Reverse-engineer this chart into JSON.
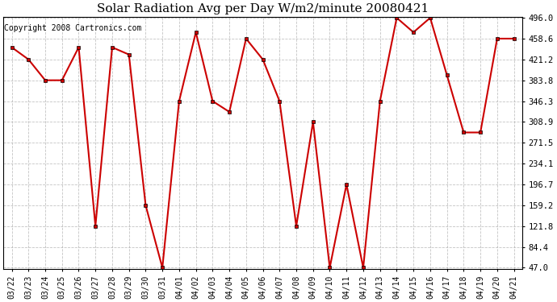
{
  "title": "Solar Radiation Avg per Day W/m2/minute 20080421",
  "copyright": "Copyright 2008 Cartronics.com",
  "x_labels": [
    "03/22",
    "03/23",
    "03/24",
    "03/25",
    "03/26",
    "03/27",
    "03/28",
    "03/29",
    "03/30",
    "03/31",
    "04/01",
    "04/02",
    "04/03",
    "04/04",
    "04/05",
    "04/06",
    "04/07",
    "04/08",
    "04/09",
    "04/10",
    "04/11",
    "04/12",
    "04/13",
    "04/14",
    "04/15",
    "04/16",
    "04/17",
    "04/18",
    "04/19",
    "04/20",
    "04/21"
  ],
  "y_values": [
    443.0,
    421.2,
    383.8,
    383.8,
    443.0,
    121.8,
    443.0,
    430.0,
    159.2,
    47.0,
    346.3,
    470.0,
    346.3,
    327.0,
    458.6,
    421.2,
    346.3,
    121.8,
    308.9,
    47.0,
    196.7,
    47.0,
    346.3,
    496.0,
    470.0,
    496.0,
    393.0,
    290.0,
    290.0,
    458.6,
    458.6
  ],
  "y_ticks": [
    47.0,
    84.4,
    121.8,
    159.2,
    196.7,
    234.1,
    271.5,
    308.9,
    346.3,
    383.8,
    421.2,
    458.6,
    496.0
  ],
  "line_color": "#cc0000",
  "marker_color": "#cc0000",
  "bg_color": "#ffffff",
  "grid_color": "#aaaaaa",
  "title_fontsize": 11,
  "copyright_fontsize": 7,
  "y_min": 47.0,
  "y_max": 496.0
}
